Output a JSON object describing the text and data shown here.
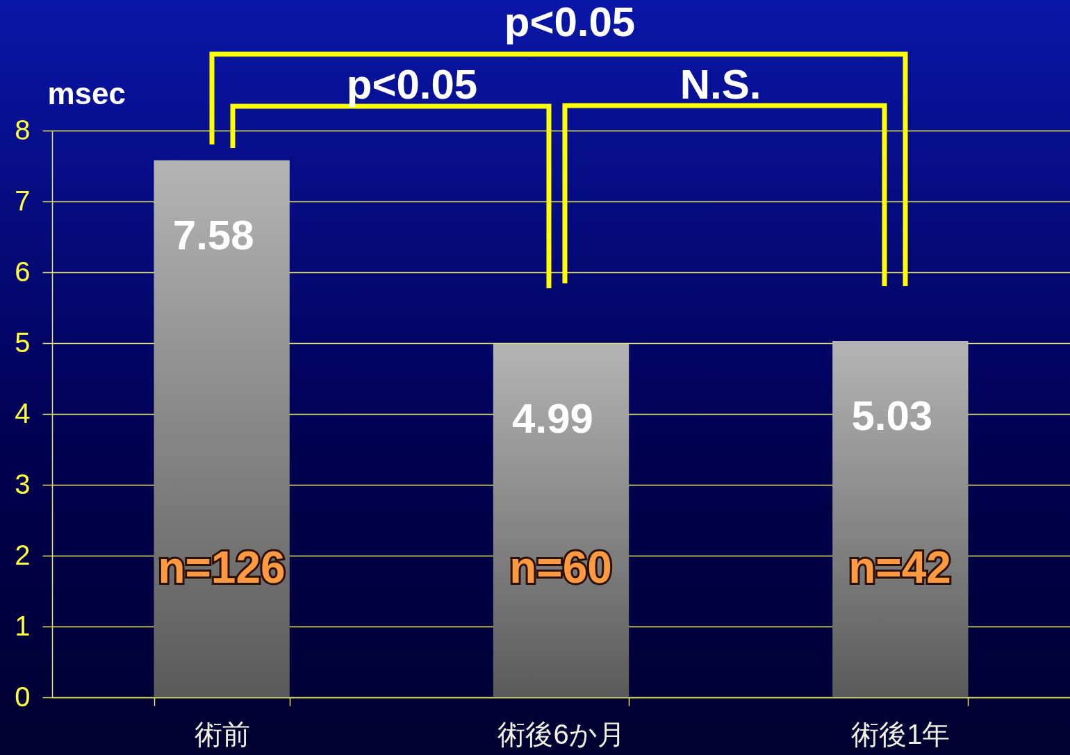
{
  "chart_data": {
    "type": "bar",
    "ylabel": "msec",
    "categories": [
      "術前",
      "術後6か月",
      "術後1年"
    ],
    "values": [
      7.58,
      4.99,
      5.03
    ],
    "color": "#b4b4b4",
    "ylim": [
      0,
      8
    ],
    "yticks": [
      0,
      1,
      2,
      3,
      4,
      5,
      6,
      7,
      8
    ],
    "grid": "y",
    "data_labels": true,
    "annotations": [
      "n=126",
      "n=60",
      "n=42",
      "p<0.05",
      "p<0.05",
      "N.S."
    ]
  }
}
